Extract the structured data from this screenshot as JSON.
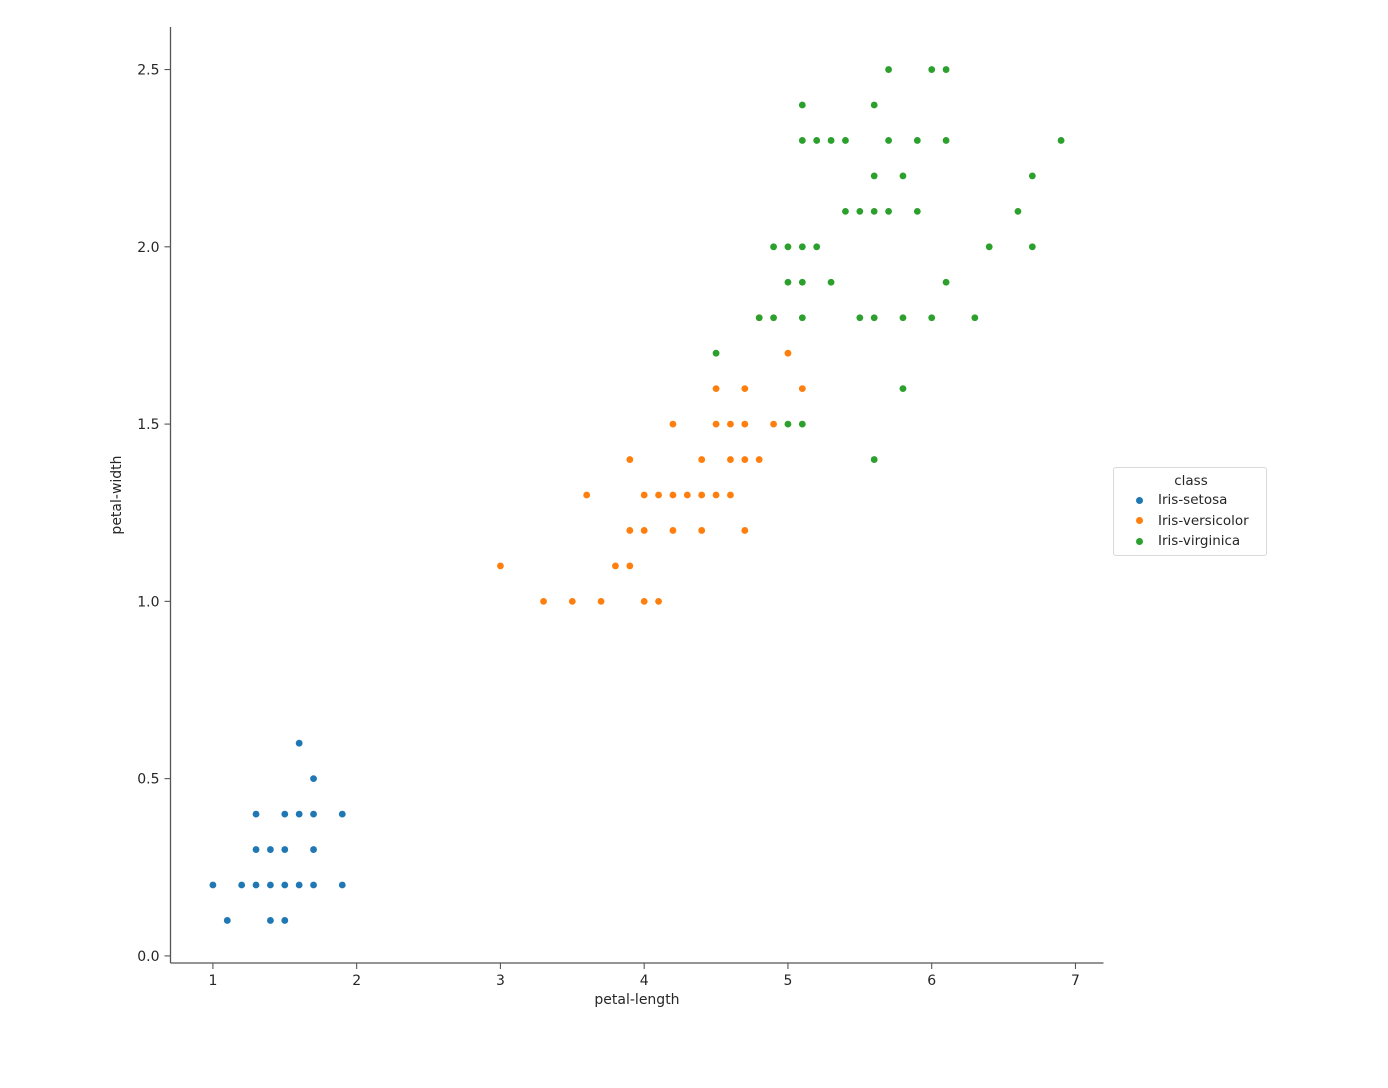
{
  "chart_data": {
    "type": "scatter",
    "title": "",
    "xlabel": "petal-length",
    "ylabel": "petal-width",
    "xlim": [
      0.705,
      7.195
    ],
    "ylim": [
      -0.02,
      2.62
    ],
    "x_ticks": [
      1,
      2,
      3,
      4,
      5,
      6,
      7
    ],
    "x_tick_labels": [
      "1",
      "2",
      "3",
      "4",
      "5",
      "6",
      "7"
    ],
    "y_ticks": [
      0.0,
      0.5,
      1.0,
      1.5,
      2.0,
      2.5
    ],
    "y_tick_labels": [
      "0.0",
      "0.5",
      "1.0",
      "1.5",
      "2.0",
      "2.5"
    ],
    "grid": false,
    "legend": {
      "title": "class",
      "position": "center right, outside axes"
    },
    "style": {
      "background": "#ffffff",
      "axis_color": "#555555",
      "text_color": "#262626",
      "legend_border_color": "#d9d9d9",
      "marker_radius_px": 3.4
    },
    "series": [
      {
        "name": "Iris-setosa",
        "color": "#1f77b4",
        "points": [
          [
            1.0,
            0.2
          ],
          [
            1.1,
            0.1
          ],
          [
            1.2,
            0.2
          ],
          [
            1.3,
            0.2
          ],
          [
            1.3,
            0.3
          ],
          [
            1.3,
            0.4
          ],
          [
            1.4,
            0.1
          ],
          [
            1.4,
            0.2
          ],
          [
            1.4,
            0.3
          ],
          [
            1.5,
            0.1
          ],
          [
            1.5,
            0.2
          ],
          [
            1.5,
            0.3
          ],
          [
            1.5,
            0.4
          ],
          [
            1.6,
            0.2
          ],
          [
            1.6,
            0.4
          ],
          [
            1.6,
            0.6
          ],
          [
            1.7,
            0.2
          ],
          [
            1.7,
            0.3
          ],
          [
            1.7,
            0.4
          ],
          [
            1.7,
            0.5
          ],
          [
            1.9,
            0.2
          ],
          [
            1.9,
            0.4
          ]
        ]
      },
      {
        "name": "Iris-versicolor",
        "color": "#ff7f0e",
        "points": [
          [
            3.0,
            1.1
          ],
          [
            3.3,
            1.0
          ],
          [
            3.5,
            1.0
          ],
          [
            3.6,
            1.3
          ],
          [
            3.7,
            1.0
          ],
          [
            3.8,
            1.1
          ],
          [
            3.9,
            1.1
          ],
          [
            3.9,
            1.2
          ],
          [
            3.9,
            1.4
          ],
          [
            4.0,
            1.0
          ],
          [
            4.0,
            1.2
          ],
          [
            4.0,
            1.3
          ],
          [
            4.1,
            1.0
          ],
          [
            4.1,
            1.3
          ],
          [
            4.2,
            1.2
          ],
          [
            4.2,
            1.3
          ],
          [
            4.2,
            1.5
          ],
          [
            4.3,
            1.3
          ],
          [
            4.4,
            1.2
          ],
          [
            4.4,
            1.3
          ],
          [
            4.4,
            1.4
          ],
          [
            4.5,
            1.3
          ],
          [
            4.5,
            1.5
          ],
          [
            4.5,
            1.6
          ],
          [
            4.6,
            1.3
          ],
          [
            4.6,
            1.4
          ],
          [
            4.6,
            1.5
          ],
          [
            4.7,
            1.2
          ],
          [
            4.7,
            1.4
          ],
          [
            4.7,
            1.5
          ],
          [
            4.7,
            1.6
          ],
          [
            4.8,
            1.4
          ],
          [
            4.8,
            1.8
          ],
          [
            4.9,
            1.5
          ],
          [
            5.0,
            1.7
          ],
          [
            5.1,
            1.6
          ]
        ]
      },
      {
        "name": "Iris-virginica",
        "color": "#2ca02c",
        "points": [
          [
            4.5,
            1.7
          ],
          [
            4.8,
            1.8
          ],
          [
            4.9,
            1.8
          ],
          [
            4.9,
            2.0
          ],
          [
            5.0,
            1.5
          ],
          [
            5.0,
            1.9
          ],
          [
            5.0,
            2.0
          ],
          [
            5.1,
            1.5
          ],
          [
            5.1,
            1.8
          ],
          [
            5.1,
            1.9
          ],
          [
            5.1,
            2.0
          ],
          [
            5.1,
            2.3
          ],
          [
            5.1,
            2.4
          ],
          [
            5.2,
            2.0
          ],
          [
            5.2,
            2.3
          ],
          [
            5.3,
            1.9
          ],
          [
            5.3,
            2.3
          ],
          [
            5.4,
            2.1
          ],
          [
            5.4,
            2.3
          ],
          [
            5.5,
            1.8
          ],
          [
            5.5,
            2.1
          ],
          [
            5.6,
            1.4
          ],
          [
            5.6,
            1.8
          ],
          [
            5.6,
            2.1
          ],
          [
            5.6,
            2.2
          ],
          [
            5.6,
            2.4
          ],
          [
            5.7,
            2.1
          ],
          [
            5.7,
            2.3
          ],
          [
            5.7,
            2.5
          ],
          [
            5.8,
            1.6
          ],
          [
            5.8,
            1.8
          ],
          [
            5.8,
            2.2
          ],
          [
            5.9,
            2.1
          ],
          [
            5.9,
            2.3
          ],
          [
            6.0,
            1.8
          ],
          [
            6.0,
            2.5
          ],
          [
            6.1,
            1.9
          ],
          [
            6.1,
            2.3
          ],
          [
            6.1,
            2.5
          ],
          [
            6.3,
            1.8
          ],
          [
            6.4,
            2.0
          ],
          [
            6.6,
            2.1
          ],
          [
            6.7,
            2.0
          ],
          [
            6.7,
            2.2
          ],
          [
            6.9,
            2.3
          ]
        ]
      }
    ]
  }
}
